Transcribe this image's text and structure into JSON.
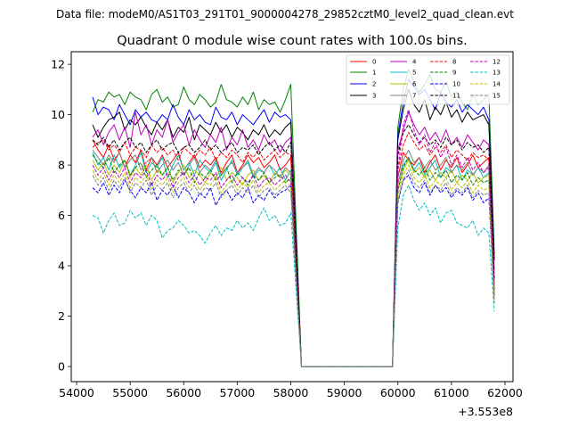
{
  "suptitle": "Data file: modeM0/AS1T03_291T01_9000004278_29852cztM0_level2_quad_clean.evt",
  "chart_data": {
    "type": "line",
    "title": "Quadrant 0 module wise count rates with 100.0s bins.",
    "xlabel": "",
    "ylabel": "",
    "x_offset_label": "+3.553e8",
    "xlim": [
      53900,
      62150
    ],
    "ylim": [
      -0.6,
      12.5
    ],
    "x_ticks": [
      54000,
      55000,
      56000,
      57000,
      58000,
      59000,
      60000,
      61000,
      62000
    ],
    "y_ticks": [
      0,
      2,
      4,
      6,
      8,
      10,
      12
    ],
    "legend_position": "top-right",
    "segment1_x_start": 54300,
    "segment2_x_start": 60000,
    "bin_width": 100,
    "gap_x": [
      58200,
      59900
    ],
    "gap_value": 0,
    "series": [
      {
        "name": "0",
        "color": "#ff0000",
        "dash": "solid",
        "seg1": [
          9.0,
          8.6,
          8.3,
          8.8,
          8.2,
          8.5,
          7.9,
          8.4,
          8.1,
          8.6,
          7.8,
          8.3,
          8.0,
          8.4,
          7.9,
          8.2,
          8.5,
          7.8,
          8.1,
          8.4,
          7.9,
          8.2,
          8.0,
          8.3,
          7.7,
          8.1,
          8.4,
          7.7,
          8.0,
          8.4,
          8.1,
          8.3,
          7.9,
          8.1,
          8.4,
          7.8,
          8.0,
          8.3
        ],
        "seg2": [
          7.5,
          8.5,
          8.2,
          8.0,
          8.3,
          7.7,
          8.1,
          8.4,
          7.8,
          8.2,
          7.9,
          8.3,
          7.7,
          8.0,
          8.4,
          7.9,
          8.1,
          8.3,
          3.2
        ]
      },
      {
        "name": "1",
        "color": "#008000",
        "dash": "solid",
        "seg1": [
          10.1,
          10.6,
          10.5,
          10.9,
          10.7,
          10.8,
          10.4,
          10.9,
          10.7,
          10.6,
          10.2,
          10.8,
          11.0,
          10.5,
          10.7,
          10.3,
          10.4,
          11.1,
          10.6,
          10.4,
          10.8,
          10.6,
          10.3,
          10.5,
          11.2,
          10.6,
          10.5,
          10.3,
          10.7,
          10.4,
          10.9,
          10.2,
          10.6,
          10.4,
          10.5,
          10.1,
          10.6,
          11.2
        ],
        "seg2": [
          9.5,
          11.0,
          11.8,
          11.3,
          10.9,
          11.2,
          11.6,
          11.0,
          10.9,
          11.3,
          10.7,
          10.9,
          10.5,
          10.2,
          10.8,
          10.4,
          10.6,
          10.8,
          4.5
        ]
      },
      {
        "name": "2",
        "color": "#0000ff",
        "dash": "solid",
        "seg1": [
          10.7,
          10.0,
          10.3,
          10.2,
          9.8,
          10.4,
          10.0,
          9.6,
          10.2,
          9.9,
          10.1,
          9.8,
          9.7,
          10.0,
          9.8,
          10.4,
          9.9,
          9.6,
          10.2,
          9.8,
          10.0,
          9.7,
          9.6,
          10.3,
          9.9,
          9.8,
          10.1,
          9.6,
          10.0,
          9.8,
          9.6,
          9.9,
          10.2,
          9.7,
          10.1,
          9.9,
          10.0,
          9.8
        ],
        "seg2": [
          9.2,
          10.5,
          11.4,
          11.1,
          10.8,
          11.0,
          10.6,
          10.2,
          10.9,
          10.5,
          10.3,
          10.6,
          10.1,
          10.4,
          10.2,
          10.0,
          10.3,
          9.8,
          4.2
        ]
      },
      {
        "name": "3",
        "color": "#000000",
        "dash": "solid",
        "seg1": [
          9.6,
          9.1,
          9.5,
          9.8,
          9.9,
          10.1,
          9.4,
          9.8,
          9.6,
          9.9,
          9.5,
          9.2,
          9.7,
          9.4,
          9.8,
          9.1,
          9.5,
          9.3,
          9.9,
          9.0,
          9.6,
          9.4,
          9.2,
          9.7,
          9.3,
          9.6,
          9.1,
          9.5,
          9.3,
          9.0,
          9.4,
          9.2,
          9.6,
          9.1,
          9.4,
          9.2,
          9.5,
          9.7
        ],
        "seg2": [
          9.0,
          10.2,
          11.0,
          10.4,
          10.1,
          10.6,
          9.8,
          10.3,
          10.0,
          10.5,
          9.9,
          10.2,
          9.7,
          10.1,
          9.8,
          9.9,
          10.0,
          9.6,
          4.3
        ]
      },
      {
        "name": "4",
        "color": "#bf00bf",
        "dash": "solid",
        "seg1": [
          9.1,
          9.4,
          8.8,
          9.3,
          9.6,
          9.0,
          9.5,
          8.7,
          10.1,
          9.2,
          9.6,
          8.8,
          9.4,
          9.1,
          9.8,
          8.9,
          9.3,
          9.6,
          8.8,
          9.4,
          9.0,
          8.7,
          9.2,
          8.9,
          9.5,
          8.6,
          9.1,
          8.8,
          9.4,
          8.7,
          9.0,
          8.6,
          9.2,
          8.8,
          9.0,
          8.5,
          8.9,
          9.1
        ],
        "seg2": [
          8.6,
          9.4,
          10.1,
          9.6,
          9.2,
          9.5,
          9.0,
          9.3,
          8.9,
          9.4,
          8.8,
          9.1,
          8.7,
          9.2,
          8.9,
          8.6,
          9.0,
          8.8,
          3.8
        ]
      },
      {
        "name": "5",
        "color": "#00bfbf",
        "dash": "solid",
        "seg1": [
          8.5,
          8.0,
          8.3,
          7.8,
          8.4,
          7.9,
          8.2,
          7.6,
          8.0,
          8.5,
          7.7,
          8.1,
          7.9,
          8.3,
          7.5,
          8.0,
          8.4,
          7.8,
          8.1,
          7.6,
          8.2,
          7.9,
          7.7,
          8.1,
          7.4,
          7.8,
          8.2,
          7.6,
          7.9,
          8.1,
          7.5,
          7.8,
          7.7,
          8.0,
          7.6,
          7.9,
          7.4,
          7.8
        ],
        "seg2": [
          7.3,
          8.0,
          8.3,
          7.8,
          8.1,
          7.6,
          7.9,
          8.2,
          7.5,
          7.9,
          7.7,
          8.0,
          7.4,
          7.8,
          7.6,
          7.9,
          7.5,
          7.7,
          3.0
        ]
      },
      {
        "name": "6",
        "color": "#bfbf00",
        "dash": "solid",
        "seg1": [
          8.2,
          7.8,
          8.1,
          7.6,
          8.0,
          7.7,
          8.2,
          7.5,
          7.9,
          7.6,
          8.0,
          7.4,
          7.8,
          7.6,
          7.9,
          7.3,
          7.7,
          8.0,
          7.5,
          7.8,
          7.6,
          7.3,
          7.7,
          7.5,
          7.9,
          7.4,
          7.7,
          7.5,
          7.2,
          7.6,
          7.8,
          7.4,
          7.6,
          7.3,
          7.7,
          7.5,
          7.8,
          7.6
        ],
        "seg2": [
          7.0,
          7.8,
          8.2,
          7.7,
          7.9,
          7.5,
          7.8,
          7.4,
          7.7,
          7.5,
          7.8,
          7.3,
          7.6,
          7.4,
          7.7,
          7.3,
          7.5,
          7.6,
          2.9
        ]
      },
      {
        "name": "7",
        "color": "#808080",
        "dash": "solid",
        "seg1": [
          8.6,
          8.3,
          8.0,
          8.4,
          8.1,
          8.5,
          7.9,
          8.2,
          8.4,
          7.8,
          8.1,
          8.3,
          7.7,
          8.0,
          8.2,
          7.8,
          8.1,
          7.6,
          8.0,
          8.3,
          7.7,
          8.0,
          7.8,
          8.2,
          7.6,
          7.9,
          8.1,
          7.7,
          7.9,
          8.2,
          7.6,
          7.9,
          7.7,
          8.0,
          7.8,
          7.5,
          7.9,
          7.7
        ],
        "seg2": [
          7.2,
          8.2,
          8.6,
          8.1,
          8.3,
          7.9,
          8.2,
          7.8,
          8.0,
          8.3,
          7.7,
          8.0,
          7.8,
          8.1,
          7.6,
          7.9,
          7.7,
          8.0,
          3.1
        ]
      },
      {
        "name": "8",
        "color": "#ff0000",
        "dash": "dashed",
        "seg1": [
          8.7,
          8.9,
          9.0,
          8.6,
          8.8,
          8.5,
          8.9,
          8.4,
          8.7,
          8.6,
          8.3,
          8.8,
          8.5,
          8.7,
          8.4,
          8.6,
          8.2,
          8.7,
          8.5,
          8.3,
          8.6,
          8.4,
          8.7,
          8.2,
          8.5,
          8.3,
          8.6,
          8.4,
          8.1,
          8.5,
          8.3,
          8.6,
          8.2,
          8.4,
          8.6,
          8.3,
          8.5,
          8.4
        ],
        "seg2": [
          7.8,
          8.8,
          9.3,
          8.9,
          8.6,
          8.8,
          8.4,
          8.7,
          8.5,
          8.8,
          8.3,
          8.6,
          8.4,
          8.2,
          8.5,
          8.3,
          8.4,
          8.2,
          3.3
        ]
      },
      {
        "name": "9",
        "color": "#008000",
        "dash": "dashed",
        "seg1": [
          8.4,
          8.1,
          7.9,
          8.3,
          7.7,
          8.0,
          8.2,
          7.6,
          7.9,
          8.1,
          7.5,
          7.8,
          8.0,
          7.6,
          7.9,
          7.4,
          7.8,
          7.6,
          7.9,
          7.3,
          7.7,
          7.5,
          7.8,
          7.4,
          7.6,
          7.9,
          7.3,
          7.7,
          7.5,
          7.2,
          7.6,
          7.4,
          7.7,
          7.3,
          7.5,
          7.6,
          7.3,
          7.5
        ],
        "seg2": [
          7.0,
          7.9,
          8.3,
          7.8,
          7.6,
          7.9,
          7.4,
          7.7,
          7.5,
          7.8,
          7.3,
          7.6,
          7.4,
          7.7,
          7.2,
          7.5,
          7.3,
          7.4,
          2.8
        ]
      },
      {
        "name": "10",
        "color": "#0000ff",
        "dash": "dashed",
        "seg1": [
          7.1,
          6.9,
          7.3,
          6.8,
          7.2,
          6.9,
          7.4,
          7.0,
          6.7,
          7.1,
          6.9,
          7.3,
          6.6,
          7.0,
          6.8,
          7.2,
          6.7,
          7.1,
          6.9,
          6.5,
          6.9,
          6.7,
          7.1,
          6.4,
          6.8,
          7.0,
          6.6,
          6.9,
          6.7,
          7.1,
          6.5,
          6.8,
          6.6,
          7.0,
          6.7,
          6.9,
          7.0,
          7.2
        ],
        "seg2": [
          6.5,
          7.4,
          7.6,
          7.1,
          6.9,
          7.3,
          6.8,
          7.2,
          6.9,
          7.1,
          6.7,
          7.0,
          6.8,
          7.1,
          6.6,
          6.9,
          6.5,
          6.7,
          2.7
        ]
      },
      {
        "name": "11",
        "color": "#000000",
        "dash": "dashed",
        "seg1": [
          9.0,
          8.8,
          9.1,
          8.7,
          9.0,
          8.6,
          8.9,
          9.1,
          8.7,
          8.9,
          8.5,
          8.8,
          9.0,
          8.6,
          8.8,
          8.9,
          8.5,
          8.7,
          8.8,
          8.5,
          8.7,
          9.0,
          8.6,
          8.8,
          8.5,
          8.7,
          8.9,
          8.5,
          8.7,
          8.6,
          8.8,
          8.4,
          8.7,
          8.9,
          8.6,
          8.8,
          8.5,
          8.9
        ],
        "seg2": [
          8.4,
          9.3,
          9.6,
          9.2,
          8.9,
          9.1,
          8.8,
          9.0,
          8.7,
          9.1,
          8.8,
          9.0,
          8.6,
          8.9,
          8.7,
          8.8,
          8.5,
          8.7,
          3.5
        ]
      },
      {
        "name": "12",
        "color": "#bf00bf",
        "dash": "dashed",
        "seg1": [
          8.0,
          7.6,
          7.9,
          7.4,
          7.8,
          7.5,
          7.9,
          7.3,
          7.7,
          7.5,
          7.8,
          7.2,
          7.6,
          7.4,
          7.7,
          7.1,
          7.5,
          7.7,
          7.3,
          7.6,
          7.2,
          7.5,
          7.4,
          7.7,
          7.1,
          7.4,
          7.6,
          7.2,
          7.5,
          7.3,
          7.6,
          7.1,
          7.4,
          7.5,
          7.2,
          7.4,
          7.6,
          7.3
        ],
        "seg2": [
          7.8,
          9.6,
          10.2,
          9.4,
          8.8,
          9.2,
          8.5,
          8.9,
          8.3,
          8.7,
          8.0,
          8.4,
          7.9,
          8.3,
          7.8,
          8.1,
          7.7,
          7.9,
          3.0
        ]
      },
      {
        "name": "13",
        "color": "#00bfbf",
        "dash": "dashed",
        "seg1": [
          6.0,
          5.9,
          5.3,
          5.8,
          6.1,
          5.6,
          5.7,
          6.2,
          5.9,
          6.1,
          5.6,
          6.0,
          5.8,
          5.1,
          5.4,
          5.5,
          5.8,
          5.6,
          5.3,
          5.4,
          5.2,
          4.9,
          5.3,
          5.6,
          5.2,
          5.5,
          5.4,
          5.8,
          5.5,
          5.7,
          5.4,
          5.9,
          6.3,
          5.8,
          6.0,
          5.6,
          5.7,
          6.1
        ],
        "seg2": [
          5.5,
          6.8,
          7.2,
          6.6,
          6.2,
          6.5,
          6.0,
          6.3,
          5.7,
          6.1,
          6.2,
          5.7,
          5.6,
          5.5,
          5.8,
          5.2,
          5.5,
          5.3,
          2.2
        ]
      },
      {
        "name": "14",
        "color": "#bfbf00",
        "dash": "dashed",
        "seg1": [
          7.8,
          7.4,
          7.7,
          7.2,
          7.6,
          7.3,
          7.7,
          7.1,
          7.5,
          7.3,
          7.6,
          7.0,
          7.4,
          7.2,
          7.5,
          6.9,
          7.3,
          7.5,
          7.1,
          7.4,
          7.0,
          7.3,
          7.2,
          7.5,
          6.9,
          7.2,
          7.4,
          7.0,
          7.3,
          7.1,
          7.4,
          6.9,
          7.2,
          7.3,
          7.0,
          7.2,
          7.4,
          7.1
        ],
        "seg2": [
          6.8,
          7.6,
          8.0,
          7.5,
          7.3,
          7.6,
          7.1,
          7.4,
          7.2,
          7.5,
          7.0,
          7.3,
          7.1,
          7.4,
          6.9,
          7.2,
          7.0,
          7.1,
          2.6
        ]
      },
      {
        "name": "15",
        "color": "#808080",
        "dash": "dashed",
        "seg1": [
          7.6,
          7.2,
          7.5,
          7.0,
          7.4,
          7.1,
          7.5,
          6.9,
          7.3,
          7.1,
          7.4,
          6.8,
          7.2,
          7.0,
          7.3,
          6.7,
          7.1,
          7.3,
          6.9,
          7.2,
          6.8,
          7.1,
          7.0,
          7.3,
          6.7,
          7.0,
          7.2,
          6.8,
          7.1,
          6.9,
          7.2,
          6.7,
          7.0,
          7.1,
          6.8,
          7.0,
          7.2,
          6.9
        ],
        "seg2": [
          6.6,
          7.4,
          7.8,
          7.3,
          7.1,
          7.4,
          6.9,
          7.2,
          7.0,
          7.3,
          6.8,
          7.1,
          6.9,
          7.2,
          6.7,
          7.0,
          6.8,
          6.9,
          2.5
        ]
      }
    ]
  }
}
